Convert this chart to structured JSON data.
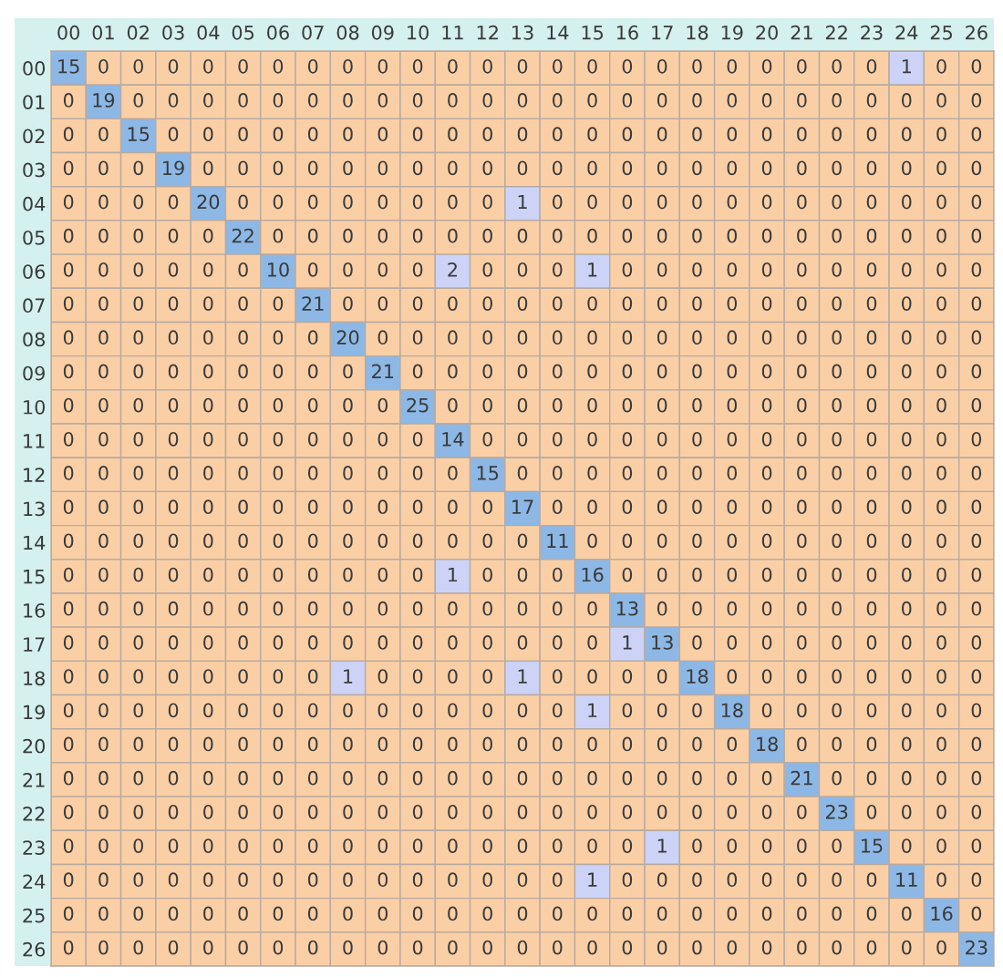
{
  "chart_data": {
    "type": "heatmap",
    "categories": [
      "00",
      "01",
      "02",
      "03",
      "04",
      "05",
      "06",
      "07",
      "08",
      "09",
      "10",
      "11",
      "12",
      "13",
      "14",
      "15",
      "16",
      "17",
      "18",
      "19",
      "20",
      "21",
      "22",
      "23",
      "24",
      "25",
      "26"
    ],
    "y_categories": [
      "00",
      "01",
      "02",
      "03",
      "04",
      "05",
      "06",
      "07",
      "08",
      "09",
      "10",
      "11",
      "12",
      "13",
      "14",
      "15",
      "16",
      "17",
      "18",
      "19",
      "20",
      "21",
      "22",
      "23",
      "24",
      "25",
      "26"
    ],
    "colors": [
      "#fbcfa6",
      "#ccd3f7",
      "#8db8e6",
      "#d4f1ef"
    ],
    "data_labels": true,
    "cells": [
      [
        15,
        0,
        0,
        0,
        0,
        0,
        0,
        0,
        0,
        0,
        0,
        0,
        0,
        0,
        0,
        0,
        0,
        0,
        0,
        0,
        0,
        0,
        0,
        0,
        1,
        0,
        0
      ],
      [
        0,
        19,
        0,
        0,
        0,
        0,
        0,
        0,
        0,
        0,
        0,
        0,
        0,
        0,
        0,
        0,
        0,
        0,
        0,
        0,
        0,
        0,
        0,
        0,
        0,
        0,
        0
      ],
      [
        0,
        0,
        15,
        0,
        0,
        0,
        0,
        0,
        0,
        0,
        0,
        0,
        0,
        0,
        0,
        0,
        0,
        0,
        0,
        0,
        0,
        0,
        0,
        0,
        0,
        0,
        0
      ],
      [
        0,
        0,
        0,
        19,
        0,
        0,
        0,
        0,
        0,
        0,
        0,
        0,
        0,
        0,
        0,
        0,
        0,
        0,
        0,
        0,
        0,
        0,
        0,
        0,
        0,
        0,
        0
      ],
      [
        0,
        0,
        0,
        0,
        20,
        0,
        0,
        0,
        0,
        0,
        0,
        0,
        0,
        1,
        0,
        0,
        0,
        0,
        0,
        0,
        0,
        0,
        0,
        0,
        0,
        0,
        0
      ],
      [
        0,
        0,
        0,
        0,
        0,
        22,
        0,
        0,
        0,
        0,
        0,
        0,
        0,
        0,
        0,
        0,
        0,
        0,
        0,
        0,
        0,
        0,
        0,
        0,
        0,
        0,
        0
      ],
      [
        0,
        0,
        0,
        0,
        0,
        0,
        10,
        0,
        0,
        0,
        0,
        2,
        0,
        0,
        0,
        1,
        0,
        0,
        0,
        0,
        0,
        0,
        0,
        0,
        0,
        0,
        0
      ],
      [
        0,
        0,
        0,
        0,
        0,
        0,
        0,
        21,
        0,
        0,
        0,
        0,
        0,
        0,
        0,
        0,
        0,
        0,
        0,
        0,
        0,
        0,
        0,
        0,
        0,
        0,
        0
      ],
      [
        0,
        0,
        0,
        0,
        0,
        0,
        0,
        0,
        20,
        0,
        0,
        0,
        0,
        0,
        0,
        0,
        0,
        0,
        0,
        0,
        0,
        0,
        0,
        0,
        0,
        0,
        0
      ],
      [
        0,
        0,
        0,
        0,
        0,
        0,
        0,
        0,
        0,
        21,
        0,
        0,
        0,
        0,
        0,
        0,
        0,
        0,
        0,
        0,
        0,
        0,
        0,
        0,
        0,
        0,
        0
      ],
      [
        0,
        0,
        0,
        0,
        0,
        0,
        0,
        0,
        0,
        0,
        25,
        0,
        0,
        0,
        0,
        0,
        0,
        0,
        0,
        0,
        0,
        0,
        0,
        0,
        0,
        0,
        0
      ],
      [
        0,
        0,
        0,
        0,
        0,
        0,
        0,
        0,
        0,
        0,
        0,
        14,
        0,
        0,
        0,
        0,
        0,
        0,
        0,
        0,
        0,
        0,
        0,
        0,
        0,
        0,
        0
      ],
      [
        0,
        0,
        0,
        0,
        0,
        0,
        0,
        0,
        0,
        0,
        0,
        0,
        15,
        0,
        0,
        0,
        0,
        0,
        0,
        0,
        0,
        0,
        0,
        0,
        0,
        0,
        0
      ],
      [
        0,
        0,
        0,
        0,
        0,
        0,
        0,
        0,
        0,
        0,
        0,
        0,
        0,
        17,
        0,
        0,
        0,
        0,
        0,
        0,
        0,
        0,
        0,
        0,
        0,
        0,
        0
      ],
      [
        0,
        0,
        0,
        0,
        0,
        0,
        0,
        0,
        0,
        0,
        0,
        0,
        0,
        0,
        11,
        0,
        0,
        0,
        0,
        0,
        0,
        0,
        0,
        0,
        0,
        0,
        0
      ],
      [
        0,
        0,
        0,
        0,
        0,
        0,
        0,
        0,
        0,
        0,
        0,
        1,
        0,
        0,
        0,
        16,
        0,
        0,
        0,
        0,
        0,
        0,
        0,
        0,
        0,
        0,
        0
      ],
      [
        0,
        0,
        0,
        0,
        0,
        0,
        0,
        0,
        0,
        0,
        0,
        0,
        0,
        0,
        0,
        0,
        13,
        0,
        0,
        0,
        0,
        0,
        0,
        0,
        0,
        0,
        0
      ],
      [
        0,
        0,
        0,
        0,
        0,
        0,
        0,
        0,
        0,
        0,
        0,
        0,
        0,
        0,
        0,
        0,
        1,
        13,
        0,
        0,
        0,
        0,
        0,
        0,
        0,
        0,
        0
      ],
      [
        0,
        0,
        0,
        0,
        0,
        0,
        0,
        0,
        1,
        0,
        0,
        0,
        0,
        1,
        0,
        0,
        0,
        0,
        18,
        0,
        0,
        0,
        0,
        0,
        0,
        0,
        0
      ],
      [
        0,
        0,
        0,
        0,
        0,
        0,
        0,
        0,
        0,
        0,
        0,
        0,
        0,
        0,
        0,
        1,
        0,
        0,
        0,
        18,
        0,
        0,
        0,
        0,
        0,
        0,
        0
      ],
      [
        0,
        0,
        0,
        0,
        0,
        0,
        0,
        0,
        0,
        0,
        0,
        0,
        0,
        0,
        0,
        0,
        0,
        0,
        0,
        0,
        18,
        0,
        0,
        0,
        0,
        0,
        0
      ],
      [
        0,
        0,
        0,
        0,
        0,
        0,
        0,
        0,
        0,
        0,
        0,
        0,
        0,
        0,
        0,
        0,
        0,
        0,
        0,
        0,
        0,
        21,
        0,
        0,
        0,
        0,
        0
      ],
      [
        0,
        0,
        0,
        0,
        0,
        0,
        0,
        0,
        0,
        0,
        0,
        0,
        0,
        0,
        0,
        0,
        0,
        0,
        0,
        0,
        0,
        0,
        23,
        0,
        0,
        0,
        0
      ],
      [
        0,
        0,
        0,
        0,
        0,
        0,
        0,
        0,
        0,
        0,
        0,
        0,
        0,
        0,
        0,
        0,
        0,
        1,
        0,
        0,
        0,
        0,
        0,
        15,
        0,
        0,
        0
      ],
      [
        0,
        0,
        0,
        0,
        0,
        0,
        0,
        0,
        0,
        0,
        0,
        0,
        0,
        0,
        0,
        1,
        0,
        0,
        0,
        0,
        0,
        0,
        0,
        0,
        11,
        0,
        0
      ],
      [
        0,
        0,
        0,
        0,
        0,
        0,
        0,
        0,
        0,
        0,
        0,
        0,
        0,
        0,
        0,
        0,
        0,
        0,
        0,
        0,
        0,
        0,
        0,
        0,
        0,
        16,
        0
      ],
      [
        0,
        0,
        0,
        0,
        0,
        0,
        0,
        0,
        0,
        0,
        0,
        0,
        0,
        0,
        0,
        0,
        0,
        0,
        0,
        0,
        0,
        0,
        0,
        0,
        0,
        0,
        23
      ]
    ]
  }
}
